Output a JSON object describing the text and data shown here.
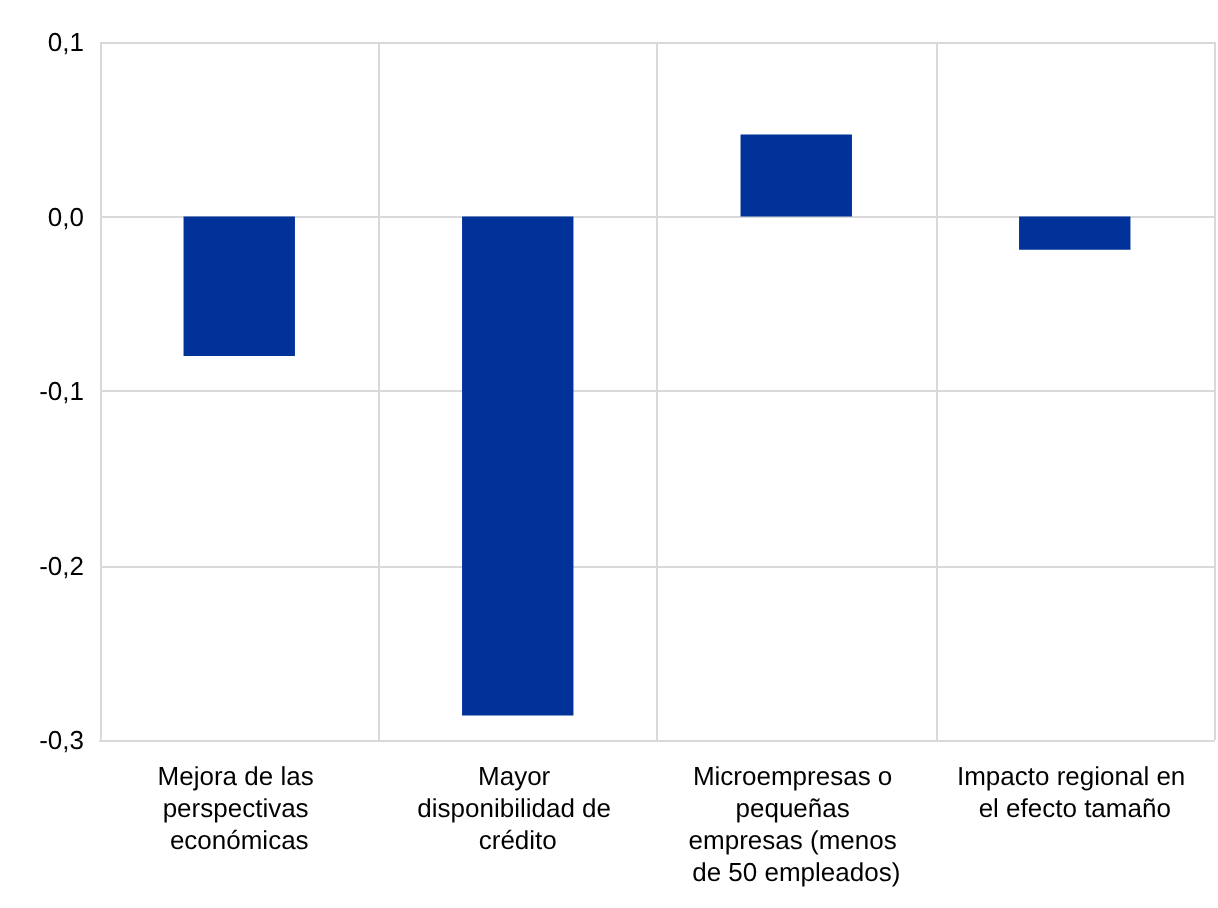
{
  "chart_data": {
    "type": "bar",
    "categories": [
      "Mejora de las perspectivas económicas",
      "Mayor disponibilidad de crédito",
      "Microempresas o pequeñas empresas (menos de 50 empleados)",
      "Impacto regional en el efecto tamaño"
    ],
    "values": [
      -0.08,
      -0.286,
      0.047,
      -0.019
    ],
    "color": "#003299",
    "ylim": [
      -0.3,
      0.1
    ],
    "yticks": [
      {
        "value": -0.3,
        "label": "-0,3"
      },
      {
        "value": -0.2,
        "label": "-0,2"
      },
      {
        "value": -0.1,
        "label": "-0,1"
      },
      {
        "value": 0,
        "label": "0,0"
      },
      {
        "value": 0.1,
        "label": "0,1"
      }
    ],
    "grid": true
  }
}
